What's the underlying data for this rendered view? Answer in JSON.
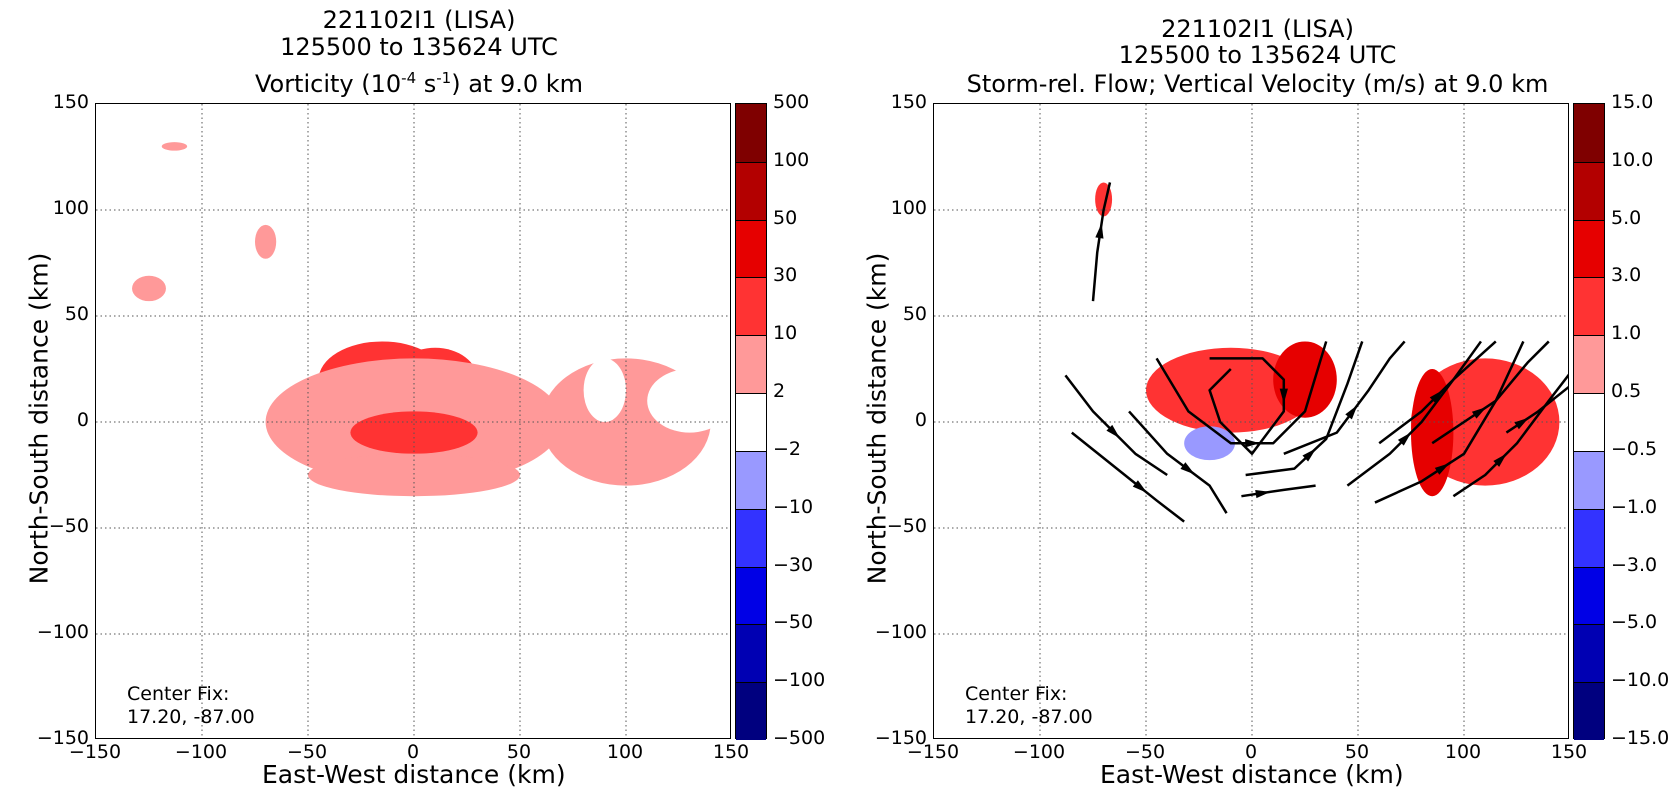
{
  "chart_data": [
    {
      "type": "heatmap",
      "title_lines": [
        "221102I1 (LISA)",
        "125500 to 135624 UTC",
        "Vorticity (10",
        "-4",
        " s",
        "-1",
        ") at 9.0 km"
      ],
      "xlabel": "East-West distance (km)",
      "ylabel": "North-South distance (km)",
      "xlim": [
        -150,
        150
      ],
      "ylim": [
        -150,
        150
      ],
      "xticks": [
        "−150",
        "−100",
        "−50",
        "0",
        "50",
        "100",
        "150"
      ],
      "yticks": [
        "150",
        "100",
        "50",
        "0",
        "−50",
        "−100",
        "−150"
      ],
      "grid": true,
      "annotation": [
        "Center Fix:",
        "17.20, -87.00"
      ],
      "colorbar_levels": [
        "500",
        "100",
        "50",
        "30",
        "10",
        "2",
        "−2",
        "−10",
        "−30",
        "−50",
        "−100",
        "−500"
      ],
      "colorbar_colors": [
        "#7f0000",
        "#b30000",
        "#e60000",
        "#ff3333",
        "#ff9999",
        "#ffffff",
        "#9999ff",
        "#3333ff",
        "#0000e6",
        "#0000b3",
        "#00007f"
      ],
      "blobs": [
        {
          "x": -15,
          "y": 20,
          "rx": 30,
          "ry": 18,
          "level": 10
        },
        {
          "x": 10,
          "y": 20,
          "rx": 20,
          "ry": 15,
          "level": 10
        },
        {
          "x": 0,
          "y": 0,
          "rx": 70,
          "ry": 30,
          "level": 2
        },
        {
          "x": 0,
          "y": -5,
          "rx": 30,
          "ry": 10,
          "level": 10
        },
        {
          "x": 0,
          "y": -25,
          "rx": 50,
          "ry": 10,
          "level": 2
        },
        {
          "x": 100,
          "y": 0,
          "rx": 40,
          "ry": 30,
          "level": 2
        },
        {
          "x": 130,
          "y": 10,
          "rx": 20,
          "ry": 15,
          "level": -2
        },
        {
          "x": 90,
          "y": 15,
          "rx": 10,
          "ry": 15,
          "level": -2
        },
        {
          "x": -125,
          "y": 63,
          "rx": 8,
          "ry": 6,
          "level": 2
        },
        {
          "x": -70,
          "y": 85,
          "rx": 5,
          "ry": 8,
          "level": 2
        },
        {
          "x": -115,
          "y": 75,
          "rx": 4,
          "ry": 3,
          "level": -2
        },
        {
          "x": -113,
          "y": 130,
          "rx": 6,
          "ry": 2,
          "level": 2
        }
      ]
    },
    {
      "type": "heatmap",
      "title_lines": [
        "221102I1 (LISA)",
        "125500 to 135624 UTC",
        "Storm-rel. Flow; Vertical Velocity (m/s) at 9.0 km"
      ],
      "xlabel": "East-West distance (km)",
      "ylabel": "North-South distance (km)",
      "xlim": [
        -150,
        150
      ],
      "ylim": [
        -150,
        150
      ],
      "xticks": [
        "−150",
        "−100",
        "−50",
        "0",
        "50",
        "100",
        "150"
      ],
      "yticks": [
        "150",
        "100",
        "50",
        "0",
        "−50",
        "−100",
        "−150"
      ],
      "grid": true,
      "annotation": [
        "Center Fix:",
        "17.20, -87.00"
      ],
      "colorbar_levels": [
        "15.0",
        "10.0",
        "5.0",
        "3.0",
        "1.0",
        "0.5",
        "−0.5",
        "−1.0",
        "−3.0",
        "−5.0",
        "−10.0",
        "−15.0"
      ],
      "colorbar_colors": [
        "#7f0000",
        "#b30000",
        "#e60000",
        "#ff3333",
        "#ff9999",
        "#ffffff",
        "#9999ff",
        "#3333ff",
        "#0000e6",
        "#0000b3",
        "#00007f"
      ],
      "blobs": [
        {
          "x": -10,
          "y": 15,
          "rx": 40,
          "ry": 20,
          "level": 1.0
        },
        {
          "x": 25,
          "y": 20,
          "rx": 15,
          "ry": 18,
          "level": 3.0
        },
        {
          "x": 110,
          "y": 0,
          "rx": 35,
          "ry": 30,
          "level": 1.0
        },
        {
          "x": 85,
          "y": -5,
          "rx": 10,
          "ry": 30,
          "level": 3.0
        },
        {
          "x": -20,
          "y": -10,
          "rx": 12,
          "ry": 8,
          "level": -1.0
        },
        {
          "x": -50,
          "y": -30,
          "rx": 10,
          "ry": 10,
          "level": -0.5
        },
        {
          "x": -65,
          "y": 25,
          "rx": 10,
          "ry": 6,
          "level": -0.5
        },
        {
          "x": -140,
          "y": 80,
          "rx": 5,
          "ry": 7,
          "level": -0.5
        },
        {
          "x": -70,
          "y": 105,
          "rx": 4,
          "ry": 8,
          "level": 1.0
        }
      ],
      "streamlines": [
        [
          [
            -75,
            57
          ],
          [
            -73,
            80
          ],
          [
            -70,
            100
          ],
          [
            -67,
            113
          ]
        ],
        [
          [
            -88,
            22
          ],
          [
            -75,
            5
          ],
          [
            -55,
            -15
          ],
          [
            -40,
            -25
          ]
        ],
        [
          [
            -85,
            -5
          ],
          [
            -60,
            -25
          ],
          [
            -45,
            -37
          ],
          [
            -32,
            -47
          ]
        ],
        [
          [
            -58,
            5
          ],
          [
            -40,
            -15
          ],
          [
            -20,
            -30
          ],
          [
            -12,
            -43
          ]
        ],
        [
          [
            -45,
            30
          ],
          [
            -30,
            5
          ],
          [
            -10,
            -10
          ],
          [
            10,
            -10
          ],
          [
            25,
            5
          ],
          [
            35,
            38
          ]
        ],
        [
          [
            -20,
            30
          ],
          [
            -10,
            30
          ],
          [
            5,
            30
          ],
          [
            15,
            20
          ],
          [
            15,
            5
          ],
          [
            0,
            -15
          ],
          [
            -15,
            0
          ],
          [
            -20,
            15
          ],
          [
            -10,
            25
          ]
        ],
        [
          [
            -3,
            -25
          ],
          [
            20,
            -22
          ],
          [
            35,
            -8
          ],
          [
            45,
            18
          ],
          [
            52,
            38
          ]
        ],
        [
          [
            -5,
            -35
          ],
          [
            15,
            -32
          ],
          [
            30,
            -30
          ]
        ],
        [
          [
            15,
            -15
          ],
          [
            40,
            -5
          ],
          [
            55,
            15
          ],
          [
            65,
            30
          ],
          [
            72,
            38
          ]
        ],
        [
          [
            45,
            -30
          ],
          [
            65,
            -15
          ],
          [
            80,
            0
          ],
          [
            95,
            20
          ],
          [
            108,
            38
          ]
        ],
        [
          [
            60,
            -10
          ],
          [
            80,
            5
          ],
          [
            95,
            20
          ],
          [
            115,
            38
          ]
        ],
        [
          [
            58,
            -38
          ],
          [
            80,
            -28
          ],
          [
            100,
            -15
          ],
          [
            115,
            10
          ],
          [
            128,
            38
          ]
        ],
        [
          [
            85,
            -10
          ],
          [
            100,
            0
          ],
          [
            115,
            10
          ],
          [
            130,
            28
          ],
          [
            140,
            38
          ]
        ],
        [
          [
            95,
            -35
          ],
          [
            110,
            -25
          ],
          [
            125,
            -10
          ],
          [
            140,
            10
          ],
          [
            150,
            23
          ]
        ],
        [
          [
            120,
            -5
          ],
          [
            135,
            5
          ],
          [
            150,
            17
          ]
        ]
      ]
    }
  ]
}
